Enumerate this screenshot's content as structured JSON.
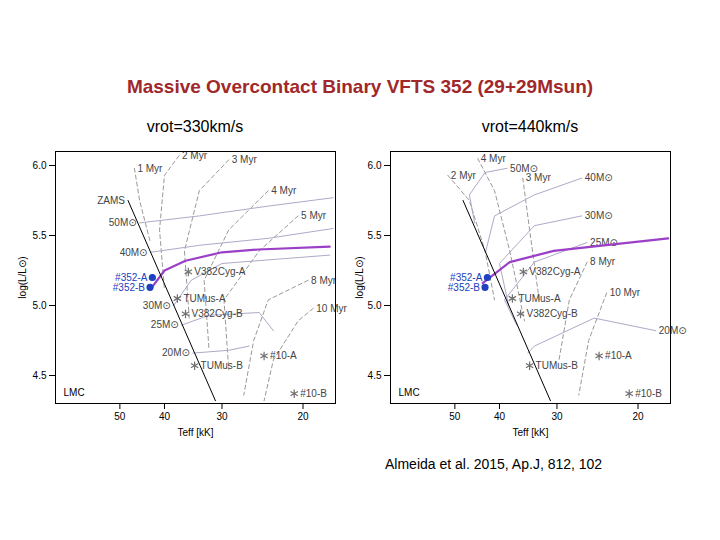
{
  "title": "Massive Overcontact Binary VFTS 352 (29+29Msun)",
  "caption": "Almeida et al. 2015, Ap.J, 812, 102",
  "chart_data": [
    {
      "type": "line",
      "title": "vrot=330km/s",
      "xlabel": "Teff [kK]",
      "ylabel": "log(L/L⊙)",
      "log": "x",
      "xlim": [
        69,
        17
      ],
      "ylim": [
        4.3,
        6.1
      ],
      "xticks": [
        50,
        40,
        30,
        20
      ],
      "yticks": [
        4.5,
        {
          "value": 5,
          "label": "5.0"
        },
        5.5,
        {
          "value": 6,
          "label": "6.0"
        }
      ],
      "region_label": "LMC",
      "series": [
        {
          "type": "line",
          "line_style": "dashed",
          "color": "#999999",
          "label": "1 Myr",
          "x": [
            46.5,
            45.3,
            43.0
          ],
          "y": [
            5.98,
            5.75,
            5.46
          ]
        },
        {
          "type": "line",
          "line_style": "dashed",
          "color": "#999999",
          "label": "2 Myr",
          "x": [
            37.2,
            40.0,
            41.0,
            40.0
          ],
          "y": [
            6.07,
            5.93,
            5.54,
            5.11
          ]
        },
        {
          "type": "line",
          "line_style": "dashed",
          "color": "#999999",
          "label": "3 Myr",
          "x": [
            29.0,
            33.6,
            36.2,
            35.3
          ],
          "y": [
            6.04,
            5.82,
            5.39,
            4.89
          ]
        },
        {
          "type": "line",
          "line_style": "dashed",
          "color": "#999999",
          "label": "4 Myr",
          "x": [
            23.8,
            29.0,
            32.8,
            32.0
          ],
          "y": [
            5.82,
            5.54,
            5.18,
            4.68
          ]
        },
        {
          "type": "line",
          "line_style": "dashed",
          "color": "#999999",
          "label": "5 Myr",
          "x": [
            20.5,
            24.9,
            29.7,
            29.0
          ],
          "y": [
            5.64,
            5.39,
            5.04,
            4.54
          ]
        },
        {
          "type": "line",
          "line_style": "dashed",
          "color": "#999999",
          "label": "8 Myr",
          "x": [
            19.5,
            23.8,
            25.6,
            26.9
          ],
          "y": [
            5.18,
            5.04,
            4.75,
            4.36
          ]
        },
        {
          "type": "line",
          "line_style": "dashed",
          "color": "#999999",
          "label": "10 Myr",
          "x": [
            19.0,
            20.5,
            23.2,
            24.3
          ],
          "y": [
            4.98,
            4.89,
            4.61,
            4.32
          ]
        },
        {
          "type": "line",
          "line_style": "solid",
          "color": "#b0a8c8",
          "label": "50M⊙",
          "x": [
            45.3,
            33.6,
            23.8,
            17.2
          ],
          "y": [
            5.59,
            5.64,
            5.71,
            5.77
          ]
        },
        {
          "type": "line",
          "line_style": "solid",
          "color": "#b0a8c8",
          "label": "40M⊙",
          "x": [
            42.9,
            33.6,
            23.8,
            17.2
          ],
          "y": [
            5.38,
            5.43,
            5.48,
            5.55
          ]
        },
        {
          "type": "line",
          "line_style": "solid",
          "color": "#b0a8c8",
          "label": "30M⊙",
          "x": [
            38.2,
            35.0,
            30.0,
            17.5
          ],
          "y": [
            5.0,
            5.18,
            5.3,
            5.36
          ]
        },
        {
          "type": "line",
          "line_style": "solid",
          "color": "#b0a8c8",
          "label": "25M⊙",
          "x": [
            36.7,
            32.0,
            24.9,
            23.2
          ],
          "y": [
            4.86,
            4.93,
            4.95,
            4.82
          ]
        },
        {
          "type": "line",
          "line_style": "solid",
          "color": "#b0a8c8",
          "label": "20M⊙",
          "x": [
            34.7,
            29.0,
            26.2
          ],
          "y": [
            4.66,
            4.68,
            4.71
          ]
        },
        {
          "type": "line",
          "line_style": "thick",
          "color": "#9b3fc8",
          "x": [
            42.8,
            40.0,
            36.0,
            30.0,
            25.0,
            17.5
          ],
          "y": [
            5.12,
            5.25,
            5.32,
            5.38,
            5.4,
            5.42
          ]
        },
        {
          "type": "line",
          "line_style": "solid",
          "color": "#000000",
          "label": "ZAMS",
          "x": [
            48,
            31
          ],
          "y": [
            5.75,
            4.32
          ]
        },
        {
          "type": "scatter",
          "marker": "circle",
          "color": "#2040c0",
          "labels": [
            "#352-A",
            "#352-B"
          ],
          "x": [
            42.5,
            43.0
          ],
          "y": [
            5.2,
            5.13
          ]
        },
        {
          "type": "scatter",
          "marker": "asterisk",
          "color": "#707070",
          "labels": [
            "V382Cyg-A",
            "V382Cyg-B",
            "TUMus-A",
            "TUMus-B",
            "#10-A",
            "#10-B"
          ],
          "x": [
            35.5,
            36.0,
            37.5,
            34.4,
            24.3,
            20.9
          ],
          "y": [
            5.24,
            4.94,
            5.05,
            4.57,
            4.64,
            4.37
          ]
        }
      ]
    },
    {
      "type": "line",
      "title": "vrot=440km/s",
      "xlabel": "Teff [kK]",
      "ylabel": "log(L/L⊙)",
      "log": "x",
      "xlim": [
        69,
        17
      ],
      "ylim": [
        4.3,
        6.1
      ],
      "xticks": [
        50,
        40,
        30,
        20
      ],
      "yticks": [
        4.5,
        {
          "value": 5,
          "label": "5.0"
        },
        5.5,
        {
          "value": 6,
          "label": "6.0"
        }
      ],
      "region_label": "LMC",
      "series": [
        {
          "type": "line",
          "line_style": "dashed",
          "color": "#999999",
          "label": "2 Myr",
          "x": [
            51.8,
            46.5,
            43.0,
            41.0
          ],
          "y": [
            5.93,
            5.75,
            5.39,
            5.04
          ]
        },
        {
          "type": "line",
          "line_style": "dashed",
          "color": "#999999",
          "label": "4 Myr",
          "x": [
            44.6,
            41.0,
            38.0,
            35.3
          ],
          "y": [
            6.05,
            5.82,
            5.39,
            4.89
          ]
        },
        {
          "type": "line",
          "line_style": "dashed",
          "color": "#999999",
          "label": "3 Myr",
          "x": [
            35.6,
            34.4,
            32.8
          ],
          "y": [
            5.91,
            5.54,
            5.04
          ]
        },
        {
          "type": "line",
          "line_style": "dashed",
          "color": "#999999",
          "label": "8 Myr",
          "x": [
            25.8,
            28.2,
            29.7
          ],
          "y": [
            5.31,
            5.04,
            4.61
          ]
        },
        {
          "type": "line",
          "line_style": "dashed",
          "color": "#999999",
          "label": "10 Myr",
          "x": [
            23.4,
            25.6,
            26.9
          ],
          "y": [
            5.09,
            4.75,
            4.36
          ]
        },
        {
          "type": "line",
          "line_style": "solid",
          "color": "#b0a8c8",
          "label": "50M⊙",
          "x": [
            38.5,
            43.0,
            46.5,
            45.3
          ],
          "y": [
            5.98,
            5.95,
            5.79,
            5.59
          ]
        },
        {
          "type": "line",
          "line_style": "solid",
          "color": "#b0a8c8",
          "label": "40M⊙",
          "x": [
            26.5,
            33.6,
            41.0,
            42.9
          ],
          "y": [
            5.91,
            5.79,
            5.64,
            5.38
          ]
        },
        {
          "type": "line",
          "line_style": "solid",
          "color": "#b0a8c8",
          "label": "30M⊙",
          "x": [
            26.5,
            33.6,
            40.0,
            38.2
          ],
          "y": [
            5.64,
            5.57,
            5.3,
            5.0
          ]
        },
        {
          "type": "line",
          "line_style": "solid",
          "color": "#b0a8c8",
          "label": "25M⊙",
          "x": [
            25.8,
            33.6,
            39.0,
            36.7
          ],
          "y": [
            5.45,
            5.31,
            5.04,
            4.86
          ]
        },
        {
          "type": "line",
          "line_style": "solid",
          "color": "#b0a8c8",
          "label": "20M⊙",
          "x": [
            18.3,
            24.9,
            33.6,
            34.7
          ],
          "y": [
            4.82,
            4.91,
            4.71,
            4.66
          ]
        },
        {
          "type": "line",
          "line_style": "thick",
          "color": "#9b3fc8",
          "x": [
            43.5,
            38.0,
            30.5,
            17.2
          ],
          "y": [
            5.16,
            5.31,
            5.39,
            5.48
          ]
        },
        {
          "type": "line",
          "line_style": "solid",
          "color": "#000000",
          "x": [
            48,
            31
          ],
          "y": [
            5.75,
            4.32
          ]
        },
        {
          "type": "scatter",
          "marker": "circle",
          "color": "#2040c0",
          "labels": [
            "#352-A",
            "#352-B"
          ],
          "x": [
            42.5,
            43.0
          ],
          "y": [
            5.2,
            5.13
          ]
        },
        {
          "type": "scatter",
          "marker": "asterisk",
          "color": "#707070",
          "labels": [
            "V382Cyg-A",
            "V382Cyg-B",
            "TUMus-A",
            "TUMus-B",
            "#10-A",
            "#10-B"
          ],
          "x": [
            35.5,
            36.0,
            37.5,
            34.4,
            24.3,
            20.9
          ],
          "y": [
            5.24,
            4.94,
            5.05,
            4.57,
            4.64,
            4.37
          ]
        }
      ]
    }
  ]
}
